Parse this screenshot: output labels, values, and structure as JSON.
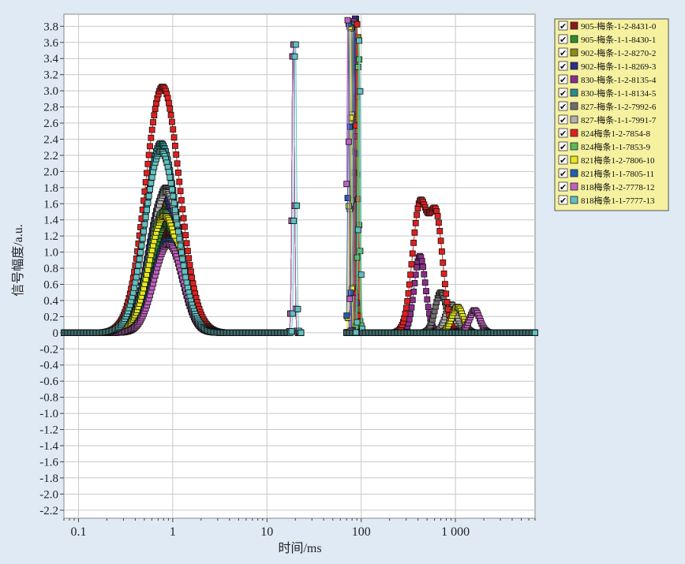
{
  "chart_data": {
    "type": "line",
    "xlabel": "时间/ms",
    "ylabel": "信号幅度/a.u.",
    "x_scale": "log",
    "xlim": [
      0.07,
      7000
    ],
    "ylim": [
      -2.3,
      3.95
    ],
    "grid": true,
    "legend_position": "top-right",
    "x_ticks": [
      {
        "value": 0.1,
        "label": "0.1"
      },
      {
        "value": 1,
        "label": "1"
      },
      {
        "value": 10,
        "label": "10"
      },
      {
        "value": 100,
        "label": "100"
      },
      {
        "value": 1000,
        "label": "1 000"
      }
    ],
    "y_ticks": [
      3.8,
      3.6,
      3.4,
      3.2,
      3.0,
      2.8,
      2.6,
      2.4,
      2.2,
      2.0,
      1.8,
      1.6,
      1.4,
      1.2,
      1.0,
      0.8,
      0.6,
      0.4,
      0.2,
      0,
      -0.2,
      -0.4,
      -0.6,
      -0.8,
      -1.0,
      -1.2,
      -1.4,
      -1.6,
      -1.8,
      -2.0,
      -2.2
    ],
    "series": [
      {
        "name": "905-梅条-1-2-8431-0",
        "color": "#8b1a1a",
        "peaks": [
          {
            "x": 0.9,
            "y": 1.25,
            "w": 0.15
          },
          {
            "x": 19,
            "y": 3.9,
            "w": 0.012
          },
          {
            "x": 90,
            "y": 3.9,
            "w": 0.01
          }
        ]
      },
      {
        "name": "905-梅条-1-1-8430-1",
        "color": "#2e8b2e",
        "peaks": [
          {
            "x": 0.85,
            "y": 1.35,
            "w": 0.15
          },
          {
            "x": 19,
            "y": 3.9,
            "w": 0.012
          },
          {
            "x": 88,
            "y": 3.9,
            "w": 0.01
          }
        ]
      },
      {
        "name": "902-梅条-1-2-8270-2",
        "color": "#8b8b1a",
        "peaks": [
          {
            "x": 0.85,
            "y": 1.6,
            "w": 0.16
          },
          {
            "x": 19,
            "y": 3.9,
            "w": 0.012
          },
          {
            "x": 92,
            "y": 3.9,
            "w": 0.01
          }
        ]
      },
      {
        "name": "902-梅条-1-1-8269-3",
        "color": "#2e2e8b",
        "peaks": [
          {
            "x": 0.8,
            "y": 1.7,
            "w": 0.16
          },
          {
            "x": 19,
            "y": 3.9,
            "w": 0.012
          },
          {
            "x": 86,
            "y": 3.9,
            "w": 0.01
          }
        ]
      },
      {
        "name": "830-梅条-1-2-8135-4",
        "color": "#8b2e8b",
        "peaks": [
          {
            "x": 0.75,
            "y": 2.3,
            "w": 0.17
          },
          {
            "x": 19,
            "y": 3.9,
            "w": 0.012
          },
          {
            "x": 84,
            "y": 3.9,
            "w": 0.01
          },
          {
            "x": 420,
            "y": 0.95,
            "w": 0.06
          }
        ]
      },
      {
        "name": "830-梅条-1-1-8134-5",
        "color": "#2e8b8b",
        "peaks": [
          {
            "x": 0.75,
            "y": 2.35,
            "w": 0.17
          },
          {
            "x": 19,
            "y": 3.9,
            "w": 0.012
          },
          {
            "x": 82,
            "y": 3.9,
            "w": 0.01
          }
        ]
      },
      {
        "name": "827-梅条-1-2-7992-6",
        "color": "#6e6e6e",
        "peaks": [
          {
            "x": 0.85,
            "y": 1.8,
            "w": 0.16
          },
          {
            "x": 19,
            "y": 3.9,
            "w": 0.012
          },
          {
            "x": 80,
            "y": 3.9,
            "w": 0.01
          },
          {
            "x": 700,
            "y": 0.5,
            "w": 0.06
          }
        ]
      },
      {
        "name": "827-梅条-1-1-7991-7",
        "color": "#b0b0b0",
        "peaks": [
          {
            "x": 0.85,
            "y": 1.75,
            "w": 0.16
          },
          {
            "x": 19,
            "y": 3.9,
            "w": 0.012
          },
          {
            "x": 78,
            "y": 3.9,
            "w": 0.01
          },
          {
            "x": 900,
            "y": 0.35,
            "w": 0.06
          }
        ]
      },
      {
        "name": "824梅条1-2-7854-8",
        "color": "#e02020",
        "peaks": [
          {
            "x": 0.78,
            "y": 3.05,
            "w": 0.18
          },
          {
            "x": 19,
            "y": 3.9,
            "w": 0.012
          },
          {
            "x": 90,
            "y": 3.9,
            "w": 0.01
          },
          {
            "x": 420,
            "y": 1.58,
            "w": 0.08
          },
          {
            "x": 630,
            "y": 1.37,
            "w": 0.07
          }
        ]
      },
      {
        "name": "824梅条1-1-7853-9",
        "color": "#5cb85c",
        "peaks": [
          {
            "x": 0.8,
            "y": 1.5,
            "w": 0.16
          },
          {
            "x": 19,
            "y": 3.9,
            "w": 0.012
          },
          {
            "x": 94,
            "y": 3.9,
            "w": 0.01
          }
        ]
      },
      {
        "name": "821梅条1-2-7806-10",
        "color": "#e6e620",
        "peaks": [
          {
            "x": 0.82,
            "y": 1.45,
            "w": 0.16
          },
          {
            "x": 19,
            "y": 3.9,
            "w": 0.012
          },
          {
            "x": 76,
            "y": 3.9,
            "w": 0.01
          },
          {
            "x": 1050,
            "y": 0.32,
            "w": 0.06
          }
        ]
      },
      {
        "name": "821梅条1-1-7805-11",
        "color": "#2060b0",
        "peaks": [
          {
            "x": 0.88,
            "y": 1.15,
            "w": 0.15
          },
          {
            "x": 19,
            "y": 3.9,
            "w": 0.012
          },
          {
            "x": 74,
            "y": 3.9,
            "w": 0.01
          }
        ]
      },
      {
        "name": "818梅条1-2-7778-12",
        "color": "#c060c0",
        "peaks": [
          {
            "x": 0.9,
            "y": 1.1,
            "w": 0.15
          },
          {
            "x": 19,
            "y": 3.9,
            "w": 0.012
          },
          {
            "x": 72,
            "y": 3.9,
            "w": 0.01
          },
          {
            "x": 1600,
            "y": 0.28,
            "w": 0.055
          }
        ]
      },
      {
        "name": "818梅条1-1-7777-13",
        "color": "#60c0c0",
        "peaks": [
          {
            "x": 0.75,
            "y": 2.25,
            "w": 0.17
          },
          {
            "x": 20,
            "y": 3.9,
            "w": 0.012
          },
          {
            "x": 96,
            "y": 3.9,
            "w": 0.01
          }
        ]
      }
    ]
  }
}
